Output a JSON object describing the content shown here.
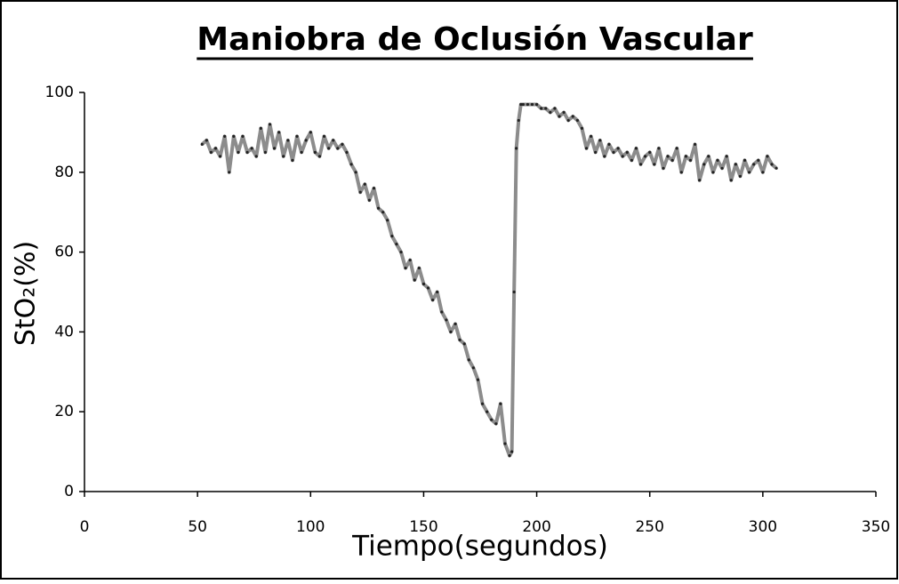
{
  "chart_data": {
    "type": "line",
    "title": "Maniobra de Oclusión Vascular",
    "x_label": "Tiempo(segundos)",
    "y_label": "StO₂(%)",
    "xlim": [
      0,
      350
    ],
    "xticks": [
      0,
      50,
      100,
      150,
      200,
      250,
      300,
      350
    ],
    "ylim": [
      0,
      100
    ],
    "yticks": [
      0,
      20,
      40,
      60,
      80,
      100
    ],
    "x": [
      52,
      54,
      56,
      58,
      60,
      62,
      64,
      66,
      68,
      70,
      72,
      74,
      76,
      78,
      80,
      82,
      84,
      86,
      88,
      90,
      92,
      94,
      96,
      98,
      100,
      102,
      104,
      106,
      108,
      110,
      112,
      114,
      116,
      118,
      120,
      122,
      124,
      126,
      128,
      130,
      132,
      134,
      136,
      138,
      140,
      142,
      144,
      146,
      148,
      150,
      152,
      154,
      156,
      158,
      160,
      162,
      164,
      166,
      168,
      170,
      172,
      174,
      176,
      178,
      180,
      182,
      184,
      186,
      188,
      189,
      190,
      191,
      192,
      193,
      194,
      196,
      198,
      200,
      202,
      204,
      206,
      208,
      210,
      212,
      214,
      216,
      218,
      220,
      222,
      224,
      226,
      228,
      230,
      232,
      234,
      236,
      238,
      240,
      242,
      244,
      246,
      248,
      250,
      252,
      254,
      256,
      258,
      260,
      262,
      264,
      266,
      268,
      270,
      272,
      274,
      276,
      278,
      280,
      282,
      284,
      286,
      288,
      290,
      292,
      294,
      296,
      298,
      300,
      302,
      304,
      306
    ],
    "series": [
      {
        "color": "#8c8c8c",
        "marker_color": "#222222",
        "values": [
          87,
          88,
          85,
          86,
          84,
          89,
          80,
          89,
          85,
          89,
          85,
          86,
          84,
          91,
          85,
          92,
          86,
          90,
          84,
          88,
          83,
          89,
          85,
          88,
          90,
          85,
          84,
          89,
          86,
          88,
          86,
          87,
          85,
          82,
          80,
          75,
          77,
          73,
          76,
          71,
          70,
          68,
          64,
          62,
          60,
          56,
          58,
          53,
          56,
          52,
          51,
          48,
          50,
          45,
          43,
          40,
          42,
          38,
          37,
          33,
          31,
          28,
          22,
          20,
          18,
          17,
          22,
          12,
          9,
          10,
          50,
          86,
          93,
          97,
          97,
          97,
          97,
          97,
          96,
          96,
          95,
          96,
          94,
          95,
          93,
          94,
          93,
          91,
          86,
          89,
          85,
          88,
          84,
          87,
          85,
          86,
          84,
          85,
          83,
          86,
          82,
          84,
          85,
          82,
          86,
          81,
          84,
          83,
          86,
          80,
          84,
          83,
          87,
          78,
          82,
          84,
          80,
          83,
          81,
          84,
          78,
          82,
          79,
          83,
          80,
          82,
          83,
          80,
          84,
          82,
          81
        ]
      }
    ]
  }
}
